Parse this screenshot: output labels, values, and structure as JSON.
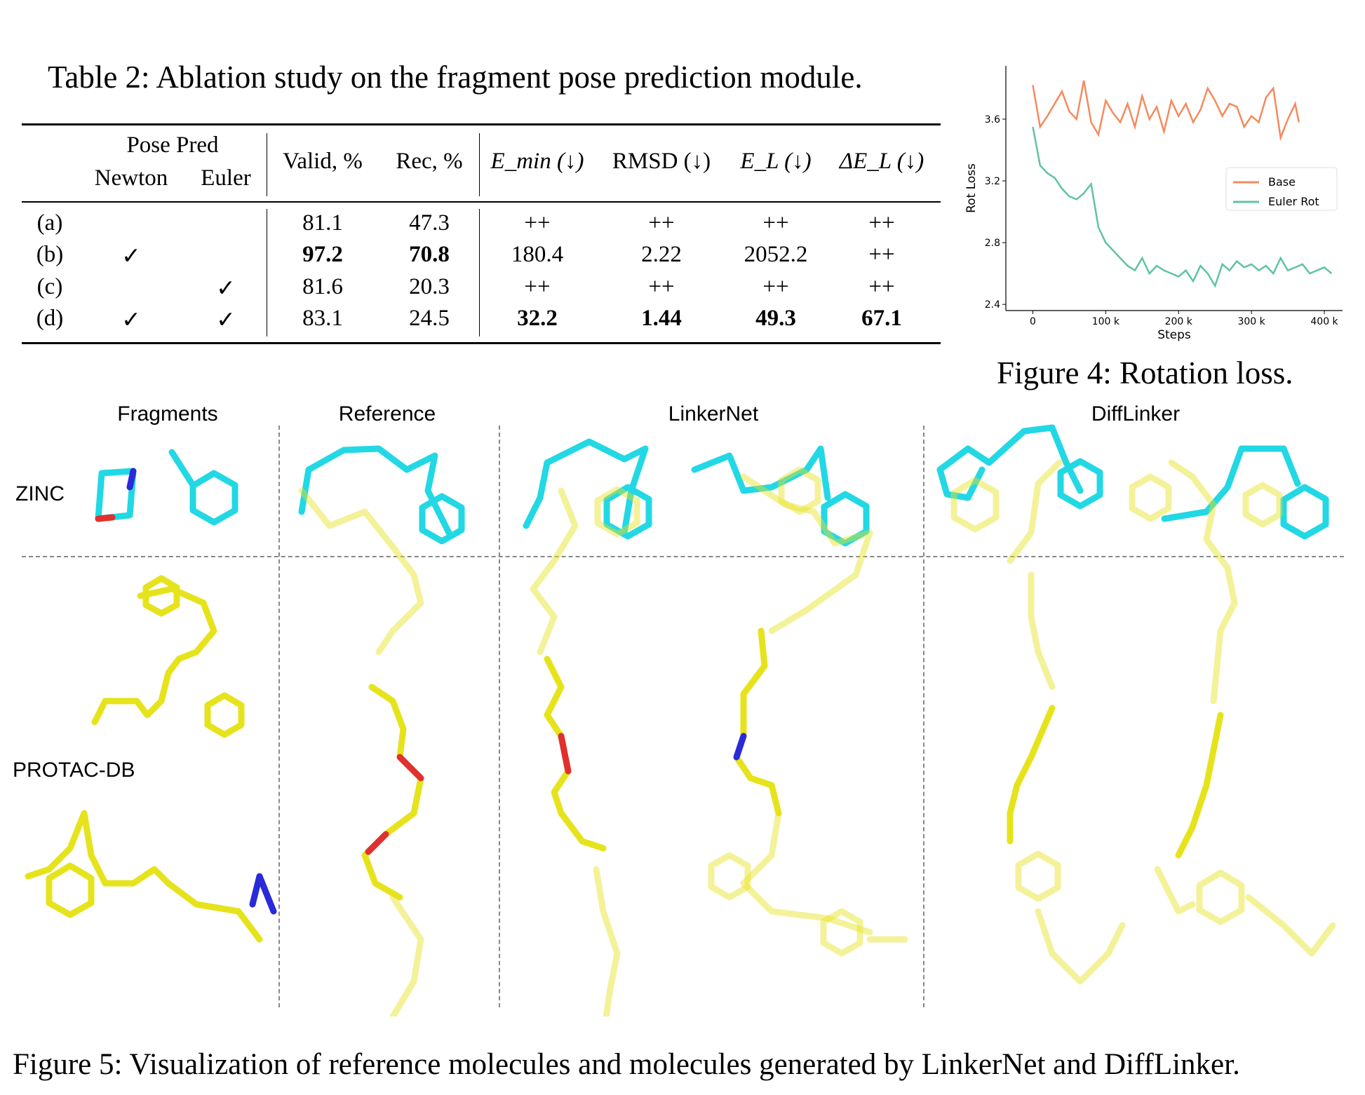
{
  "table": {
    "caption": "Table 2: Ablation study on the fragment pose prediction module.",
    "group_header": "Pose Pred",
    "columns": [
      "Newton",
      "Euler",
      "Valid, %",
      "Rec, %",
      "E_min (↓)",
      "RMSD (↓)",
      "E_L (↓)",
      "ΔE_L (↓)"
    ],
    "rows": [
      {
        "label": "(a)",
        "newton": "",
        "euler": "",
        "valid": "81.1",
        "rec": "47.3",
        "emin": "++",
        "rmsd": "++",
        "el": "++",
        "del": "++"
      },
      {
        "label": "(b)",
        "newton": "✓",
        "euler": "",
        "valid": "97.2",
        "rec": "70.8",
        "emin": "180.4",
        "rmsd": "2.22",
        "el": "2052.2",
        "del": "++"
      },
      {
        "label": "(c)",
        "newton": "",
        "euler": "✓",
        "valid": "81.6",
        "rec": "20.3",
        "emin": "++",
        "rmsd": "++",
        "el": "++",
        "del": "++"
      },
      {
        "label": "(d)",
        "newton": "✓",
        "euler": "✓",
        "valid": "83.1",
        "rec": "24.5",
        "emin": "32.2",
        "rmsd": "1.44",
        "el": "49.3",
        "del": "67.1"
      }
    ],
    "bold_cells": [
      "b.valid",
      "b.rec",
      "d.emin",
      "d.rmsd",
      "d.el",
      "d.del"
    ]
  },
  "chart_data": {
    "type": "line",
    "title": "",
    "xlabel": "Steps",
    "ylabel": "Rot Loss",
    "xlim": [
      -37000,
      425000
    ],
    "ylim": [
      2.36,
      3.945
    ],
    "xticks": [
      0,
      100000,
      200000,
      300000,
      400000
    ],
    "xtick_labels": [
      "0",
      "100 k",
      "200 k",
      "300 k",
      "400 k"
    ],
    "yticks": [
      2.4,
      2.8,
      3.2,
      3.6
    ],
    "ytick_labels": [
      "2.4",
      "2.8",
      "3.2",
      "3.6"
    ],
    "grid": false,
    "legend": "center-right",
    "series": [
      {
        "name": "Base",
        "color": "#f58a5d",
        "x": [
          0,
          10000,
          20000,
          30000,
          40000,
          50000,
          60000,
          70000,
          80000,
          90000,
          100000,
          110000,
          120000,
          130000,
          140000,
          150000,
          160000,
          170000,
          180000,
          190000,
          200000,
          210000,
          220000,
          230000,
          240000,
          250000,
          260000,
          270000,
          280000,
          290000,
          300000,
          310000,
          320000,
          330000,
          340000,
          350000,
          360000,
          365000
        ],
        "values": [
          3.82,
          3.55,
          3.62,
          3.7,
          3.78,
          3.65,
          3.6,
          3.85,
          3.58,
          3.5,
          3.72,
          3.64,
          3.58,
          3.7,
          3.55,
          3.75,
          3.6,
          3.68,
          3.52,
          3.72,
          3.62,
          3.7,
          3.58,
          3.66,
          3.8,
          3.72,
          3.62,
          3.7,
          3.68,
          3.55,
          3.62,
          3.58,
          3.74,
          3.8,
          3.48,
          3.6,
          3.7,
          3.58
        ]
      },
      {
        "name": "Euler Rot",
        "color": "#5fc3a2",
        "x": [
          0,
          10000,
          20000,
          30000,
          40000,
          50000,
          60000,
          70000,
          80000,
          90000,
          100000,
          110000,
          120000,
          130000,
          140000,
          150000,
          160000,
          170000,
          180000,
          190000,
          200000,
          210000,
          220000,
          230000,
          240000,
          250000,
          260000,
          270000,
          280000,
          290000,
          300000,
          310000,
          320000,
          330000,
          340000,
          350000,
          360000,
          370000,
          380000,
          390000,
          400000,
          410000
        ],
        "values": [
          3.55,
          3.3,
          3.25,
          3.22,
          3.15,
          3.1,
          3.08,
          3.12,
          3.18,
          2.9,
          2.8,
          2.75,
          2.7,
          2.65,
          2.62,
          2.7,
          2.6,
          2.65,
          2.62,
          2.6,
          2.58,
          2.62,
          2.55,
          2.65,
          2.6,
          2.52,
          2.66,
          2.62,
          2.68,
          2.64,
          2.66,
          2.62,
          2.65,
          2.6,
          2.7,
          2.62,
          2.64,
          2.66,
          2.6,
          2.62,
          2.64,
          2.6
        ]
      }
    ],
    "caption": "Figure 4: Rotation loss."
  },
  "figure5": {
    "columns": [
      "Fragments",
      "Reference",
      "LinkerNet",
      "DiffLinker"
    ],
    "rows": [
      "ZINC",
      "PROTAC-DB"
    ],
    "colors": {
      "zinc": "#22d8e4",
      "protac": "#e6e31c",
      "nitrogen": "#2a2ad8",
      "oxygen": "#e03030"
    },
    "caption": "Figure 5: Visualization of reference molecules and molecules generated by LinkerNet and DiffLinker."
  }
}
